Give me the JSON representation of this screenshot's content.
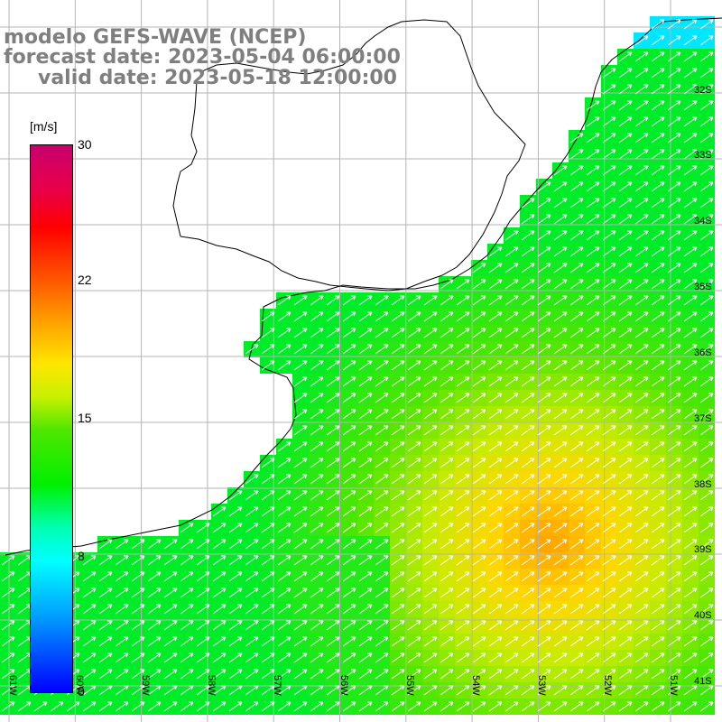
{
  "title": {
    "line1": "modelo GEFS-WAVE (NCEP)",
    "line2": "forecast date: 2023-05-04 06:00:00",
    "line3": "valid date: 2023-05-18 12:00:00"
  },
  "colorbar": {
    "unit": "[m/s]",
    "ticks": [
      "30",
      "22",
      "15",
      "8",
      "0"
    ]
  },
  "lat_labels": [
    "32S",
    "33S",
    "34S",
    "35S",
    "36S",
    "37S",
    "38S",
    "39S",
    "40S",
    "41S"
  ],
  "lon_labels": [
    "61W",
    "60W",
    "59W",
    "58W",
    "57W",
    "56W",
    "55W",
    "54W",
    "53W",
    "52W",
    "51W"
  ],
  "colors": {
    "land": "#ffffff",
    "coast": "#000000",
    "grid": "#b4b4b4",
    "arrows": "#ffffff",
    "title_text": "#7f7f7f"
  },
  "arrow_direction": "toward northeast"
}
